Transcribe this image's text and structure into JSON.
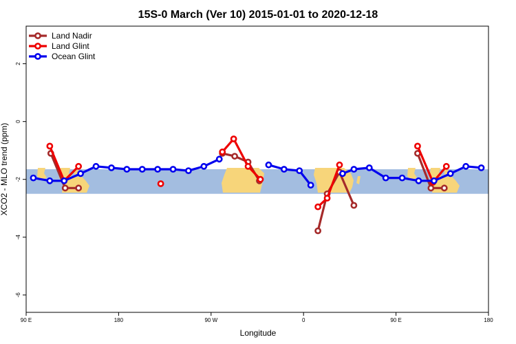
{
  "chart_data": {
    "type": "line",
    "title": "15S-0 March (Ver 10)   2015-01-01 to 2020-12-18",
    "xlabel": "Longitude",
    "ylabel": "XCO2 - MLO trend (ppm)",
    "x_axis": {
      "unit": "degrees longitude, shifted 0-360 from 90 E",
      "range": [
        90,
        450
      ],
      "ticks": [
        {
          "value": 90,
          "label": "90 E"
        },
        {
          "value": 180,
          "label": "180"
        },
        {
          "value": 270,
          "label": "90 W"
        },
        {
          "value": 360,
          "label": "0"
        },
        {
          "value": 450,
          "label": "90 E"
        },
        {
          "value": 540,
          "label": "180"
        }
      ]
    },
    "y_axis": {
      "range": [
        -6.6,
        3.3
      ],
      "ticks": [
        {
          "value": 2,
          "label": "2"
        },
        {
          "value": 0,
          "label": "0"
        },
        {
          "value": -2,
          "label": "-2"
        },
        {
          "value": -4,
          "label": "-4"
        },
        {
          "value": -6,
          "label": "-6"
        }
      ]
    },
    "x_range_degrees": [
      90,
      540
    ],
    "band": {
      "y_range": [
        -2.5,
        -1.65
      ],
      "color": "#a3bde0",
      "land_color": "#f7d57a"
    },
    "grid": false,
    "legend_position": "top-left",
    "series": [
      {
        "name": "Land Nadir",
        "color": "#a52a2a",
        "segments": [
          [
            [
              114,
              -1.1
            ],
            [
              128,
              -2.3
            ],
            [
              141,
              -2.3
            ]
          ],
          [
            [
              281,
              -1.1
            ],
            [
              293,
              -1.2
            ],
            [
              306,
              -1.4
            ],
            [
              317,
              -2.05
            ]
          ],
          [
            [
              374,
              -3.78
            ],
            [
              383,
              -2.5
            ],
            [
              395,
              -1.75
            ],
            [
              409,
              -2.9
            ]
          ],
          [
            [
              471,
              -1.1
            ],
            [
              484,
              -2.3
            ],
            [
              497,
              -2.3
            ]
          ]
        ]
      },
      {
        "name": "Land Glint",
        "color": "#ee0000",
        "segments": [
          [
            [
              113,
              -0.85
            ],
            [
              127,
              -2.05
            ],
            [
              141,
              -1.55
            ]
          ],
          [
            [
              221,
              -2.15
            ]
          ],
          [
            [
              281,
              -1.05
            ],
            [
              292,
              -0.6
            ],
            [
              306,
              -1.55
            ],
            [
              318,
              -2.0
            ]
          ],
          [
            [
              374,
              -2.95
            ],
            [
              383,
              -2.65
            ],
            [
              395,
              -1.5
            ]
          ],
          [
            [
              471,
              -0.85
            ],
            [
              486,
              -2.1
            ],
            [
              499,
              -1.55
            ]
          ]
        ]
      },
      {
        "name": "Ocean Glint",
        "color": "#0000ee",
        "segments": [
          [
            [
              97,
              -1.95
            ],
            [
              113,
              -2.05
            ],
            [
              127,
              -2.05
            ],
            [
              143,
              -1.8
            ],
            [
              158,
              -1.55
            ],
            [
              173,
              -1.6
            ],
            [
              188,
              -1.65
            ],
            [
              203,
              -1.65
            ],
            [
              218,
              -1.65
            ],
            [
              233,
              -1.65
            ],
            [
              248,
              -1.7
            ],
            [
              263,
              -1.55
            ],
            [
              278,
              -1.3
            ]
          ],
          [
            [
              326,
              -1.5
            ],
            [
              341,
              -1.65
            ],
            [
              356,
              -1.7
            ],
            [
              367,
              -2.2
            ]
          ],
          [
            [
              398,
              -1.8
            ],
            [
              409,
              -1.65
            ],
            [
              424,
              -1.6
            ],
            [
              440,
              -1.95
            ],
            [
              456,
              -1.95
            ],
            [
              472,
              -2.05
            ],
            [
              487,
              -2.05
            ],
            [
              503,
              -1.8
            ],
            [
              518,
              -1.55
            ],
            [
              533,
              -1.6
            ]
          ]
        ]
      }
    ]
  }
}
